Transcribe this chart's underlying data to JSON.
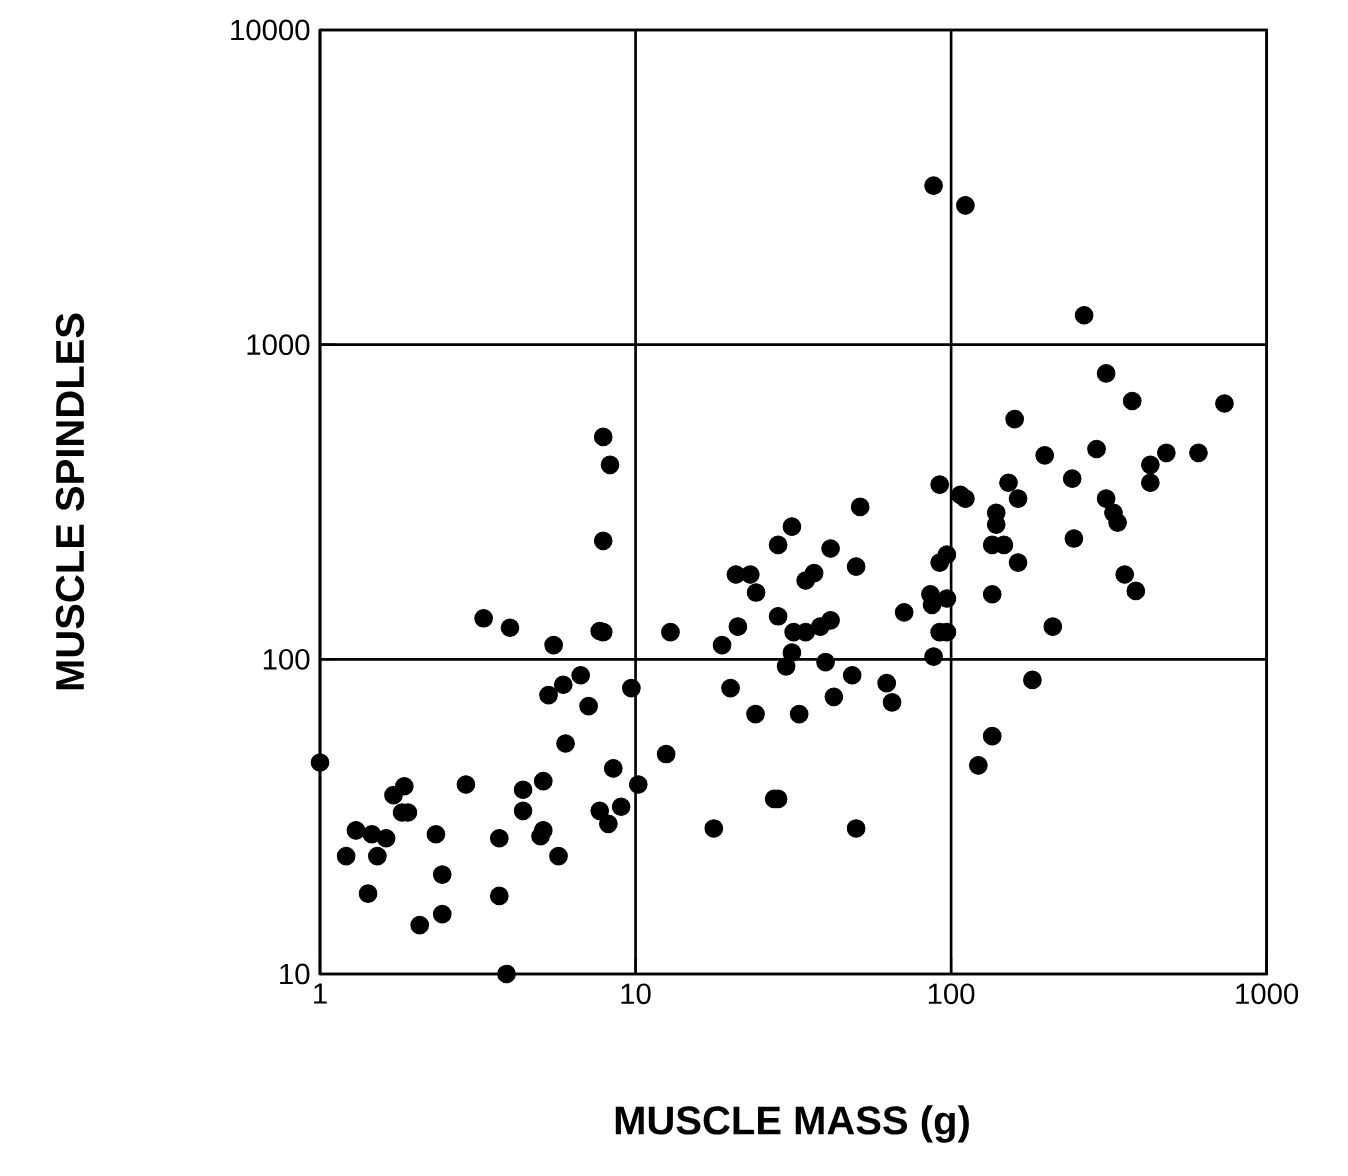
{
  "chart_data": {
    "type": "scatter",
    "xlabel": "MUSCLE MASS (g)",
    "ylabel": "MUSCLE SPINDLES",
    "log": "xy",
    "grid": true,
    "marker": "circle",
    "color": "#000000",
    "xlim": [
      1,
      1000
    ],
    "ylim": [
      10,
      10000
    ],
    "xticks": [
      1,
      10,
      100,
      1000
    ],
    "yticks": [
      10,
      100,
      1000,
      10000
    ],
    "x": [
      1.0,
      1.21,
      1.3,
      1.42,
      1.52,
      1.46,
      1.62,
      1.71,
      1.85,
      1.82,
      1.9,
      2.07,
      2.44,
      2.44,
      2.33,
      2.9,
      3.3,
      3.7,
      3.7,
      3.9,
      4.0,
      4.4,
      4.4,
      5.1,
      5.0,
      5.1,
      5.7,
      5.5,
      5.3,
      5.9,
      6.0,
      6.7,
      7.1,
      7.7,
      7.7,
      8.2,
      8.5,
      9.0,
      9.7,
      10.2,
      7.9,
      8.3,
      7.9,
      7.9,
      12.9,
      12.5,
      18.8,
      21.1,
      20.8,
      23.1,
      24.1,
      28.3,
      31.3,
      28.3,
      31.7,
      34.6,
      38.5,
      41.5,
      34.6,
      36.8,
      41.5,
      50,
      51.5,
      28.3,
      31.3,
      30,
      40,
      48.6,
      62.5,
      65,
      71,
      42.5,
      33,
      24,
      20,
      27.5,
      17.7,
      50,
      92,
      107,
      92,
      97,
      86,
      97,
      87,
      92,
      97,
      88,
      88,
      111,
      264,
      310,
      375,
      735,
      159,
      198,
      289,
      481,
      608,
      428,
      428,
      111,
      152,
      163,
      242,
      310,
      327,
      337,
      139,
      139,
      135,
      147,
      163,
      245,
      355,
      385,
      135,
      210,
      181,
      135,
      122
    ],
    "values": [
      47,
      23.7,
      28.6,
      18,
      23.7,
      27.8,
      27,
      37,
      39.5,
      32.6,
      32.6,
      14.3,
      15.5,
      20.7,
      27.8,
      40,
      135,
      27,
      17.7,
      10,
      126,
      38.5,
      33,
      41,
      27.4,
      28.6,
      23.7,
      111,
      77,
      83,
      54,
      89,
      71,
      123,
      33,
      30,
      45,
      34,
      81,
      40,
      509,
      415,
      238,
      122,
      122,
      50,
      111,
      127,
      186,
      186,
      163,
      231,
      264,
      137,
      122,
      122,
      127,
      133,
      178,
      188,
      225,
      197,
      305,
      36,
      105,
      95,
      98,
      89,
      84,
      73,
      141,
      76,
      67,
      67,
      81,
      36,
      29,
      29,
      359,
      333,
      203,
      215,
      161,
      156,
      149,
      122,
      122,
      102,
      3200,
      2770,
      1240,
      810,
      662,
      650,
      580,
      445,
      466,
      453,
      453,
      415,
      364,
      324,
      364,
      324,
      375,
      324,
      292,
      272,
      292,
      268,
      231,
      231,
      203,
      242,
      186,
      165,
      161,
      127,
      86,
      57,
      46
    ]
  }
}
